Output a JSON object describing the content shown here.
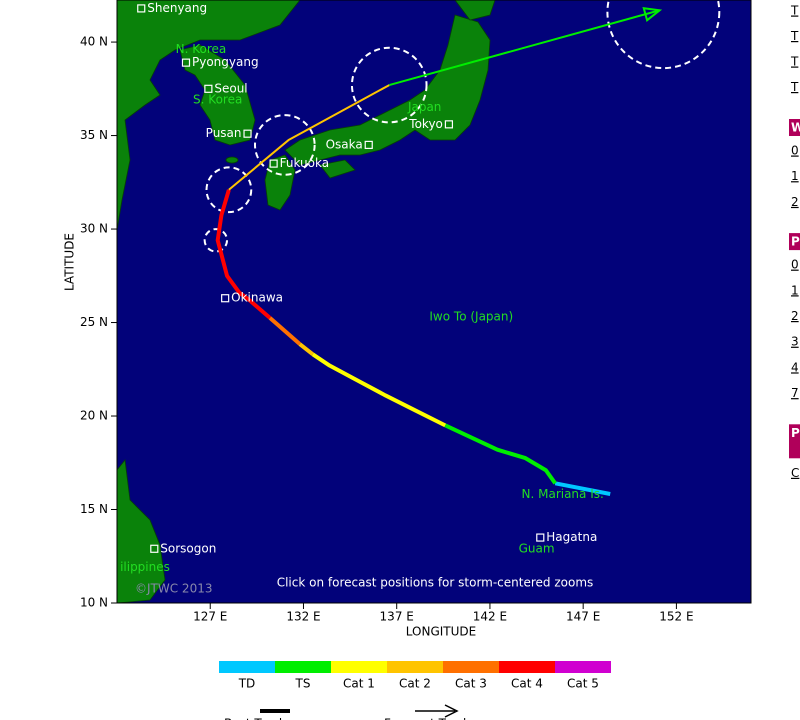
{
  "map": {
    "axes": {
      "xlabel": "LONGITUDE",
      "ylabel": "LATITUDE",
      "xlim": [
        122,
        156
      ],
      "ylim": [
        10,
        42.25
      ],
      "xticks": [
        {
          "value": 127,
          "label": "127 E"
        },
        {
          "value": 132,
          "label": "132 E"
        },
        {
          "value": 137,
          "label": "137 E"
        },
        {
          "value": 142,
          "label": "142 E"
        },
        {
          "value": 147,
          "label": "147 E"
        },
        {
          "value": 152,
          "label": "152 E"
        }
      ],
      "yticks": [
        {
          "value": 10,
          "label": "10 N"
        },
        {
          "value": 15,
          "label": "15 N"
        },
        {
          "value": 20,
          "label": "20 N"
        },
        {
          "value": 25,
          "label": "25 N"
        },
        {
          "value": 30,
          "label": "30 N"
        },
        {
          "value": 35,
          "label": "35 N"
        },
        {
          "value": 40,
          "label": "40 N"
        }
      ]
    },
    "legend": [
      {
        "name": "TD",
        "color": "#00c8ff"
      },
      {
        "name": "TS",
        "color": "#00ee00"
      },
      {
        "name": "Cat 1",
        "color": "#ffff00"
      },
      {
        "name": "Cat 2",
        "color": "#ffc400"
      },
      {
        "name": "Cat 3",
        "color": "#ff7000"
      },
      {
        "name": "Cat 4",
        "color": "#ff0000"
      },
      {
        "name": "Cat 5",
        "color": "#d000d0"
      }
    ],
    "line_legend": [
      "Best Track",
      "Forecast Track"
    ],
    "track": [
      {
        "category": "TD",
        "points": [
          [
            148.45,
            15.83
          ],
          [
            145.5,
            16.4
          ]
        ]
      },
      {
        "category": "TS",
        "points": [
          [
            145.5,
            16.4
          ],
          [
            145.0,
            17.1
          ],
          [
            143.9,
            17.75
          ],
          [
            142.4,
            18.2
          ],
          [
            139.6,
            19.5
          ]
        ]
      },
      {
        "category": "Cat 1",
        "points": [
          [
            139.6,
            19.5
          ],
          [
            138.0,
            20.3
          ],
          [
            136.4,
            21.1
          ],
          [
            134.9,
            21.9
          ],
          [
            133.4,
            22.7
          ],
          [
            132.5,
            23.3
          ]
        ]
      },
      {
        "category": "Cat 2",
        "points": [
          [
            132.5,
            23.3
          ],
          [
            131.8,
            23.85
          ]
        ]
      },
      {
        "category": "Cat 3",
        "points": [
          [
            131.8,
            23.85
          ],
          [
            130.2,
            25.25
          ]
        ]
      },
      {
        "category": "Cat 4",
        "points": [
          [
            130.2,
            25.25
          ],
          [
            129.1,
            26.2
          ],
          [
            128.56,
            26.6
          ],
          [
            127.9,
            27.5
          ],
          [
            127.4,
            29.4
          ],
          [
            127.6,
            30.75
          ],
          [
            128.0,
            32.1
          ]
        ]
      }
    ],
    "forecast": [
      {
        "category": "Cat 2",
        "points": [
          [
            128.0,
            32.1
          ],
          [
            131.2,
            34.76
          ],
          [
            136.6,
            37.7
          ]
        ]
      },
      {
        "category": "TS",
        "points": [
          [
            136.6,
            37.7
          ],
          [
            151.1,
            41.7
          ]
        ]
      }
    ],
    "forecast_circles": [
      [
        127.3,
        29.4,
        0.6
      ],
      [
        128.0,
        32.1,
        1.2
      ],
      [
        131.0,
        34.5,
        1.6
      ],
      [
        136.6,
        37.7,
        2
      ],
      [
        151.3,
        41.6,
        3
      ]
    ],
    "places": [
      {
        "name": "Shenyang",
        "lon": 123.3,
        "lat": 41.8
      },
      {
        "name": "Pyongyang",
        "lon": 125.7,
        "lat": 38.9
      },
      {
        "name": "Seoul",
        "lon": 126.9,
        "lat": 37.5
      },
      {
        "name": "Pusan",
        "lon": 129.0,
        "lat": 35.1,
        "side": "left"
      },
      {
        "name": "Fukuoka",
        "lon": 130.4,
        "lat": 33.5
      },
      {
        "name": "Osaka",
        "lon": 135.5,
        "lat": 34.5,
        "side": "left"
      },
      {
        "name": "Tokyo",
        "lon": 139.8,
        "lat": 35.6,
        "side": "left"
      },
      {
        "name": "Okinawa",
        "lon": 127.8,
        "lat": 26.3
      },
      {
        "name": "Sorsogon",
        "lon": 124.0,
        "lat": 12.9
      },
      {
        "name": "Hagatna",
        "lon": 144.7,
        "lat": 13.5
      }
    ],
    "regions": [
      {
        "name": "N. Korea",
        "lon": 126.5,
        "lat": 39.6
      },
      {
        "name": "S. Korea",
        "lon": 127.4,
        "lat": 36.9
      },
      {
        "name": "Japan",
        "lon": 138.5,
        "lat": 36.5
      },
      {
        "name": "Iwo To (Japan)",
        "lon": 141.0,
        "lat": 25.3
      },
      {
        "name": "N. Mariana Is.",
        "lon": 145.9,
        "lat": 15.8
      },
      {
        "name": "Guam",
        "lon": 144.5,
        "lat": 12.9
      },
      {
        "name": "ilippines",
        "lon": 123.5,
        "lat": 11.9
      }
    ],
    "credit": "©JTWC 2013",
    "note": "Click on forecast positions for storm-centered zooms"
  },
  "panel": {
    "links_top": [
      "T",
      "T",
      "T",
      "T"
    ],
    "sections": [
      {
        "head": "W",
        "items": [
          "0",
          "1",
          "2"
        ]
      },
      {
        "head": "P",
        "items": [
          "0",
          "1",
          "2",
          "3",
          "4",
          "7"
        ]
      },
      {
        "head": "P A",
        "items": [
          "C"
        ]
      }
    ]
  }
}
